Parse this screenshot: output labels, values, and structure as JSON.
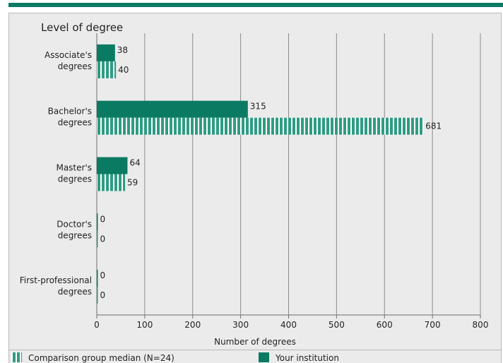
{
  "chart_data": {
    "type": "bar",
    "orientation": "horizontal",
    "title": "Level of degree",
    "xlabel": "Number of degrees",
    "xlim": [
      0,
      800
    ],
    "xticks": [
      0,
      100,
      200,
      300,
      400,
      500,
      600,
      700,
      800
    ],
    "grid": true,
    "categories": [
      [
        "Associate's",
        "degrees"
      ],
      [
        "Bachelor's",
        "degrees"
      ],
      [
        "Master's",
        "degrees"
      ],
      [
        "Doctor's",
        "degrees"
      ],
      [
        "First-professional",
        "degrees"
      ]
    ],
    "series": [
      {
        "name": "Your institution",
        "values": [
          38,
          315,
          64,
          0,
          0
        ],
        "color": "#0b7a62",
        "pattern": "solid"
      },
      {
        "name": "Comparison group median (N=24)",
        "values": [
          40,
          681,
          59,
          0,
          0
        ],
        "color": "#2e9c82",
        "pattern": "striped"
      }
    ],
    "legend": {
      "position": "bottom",
      "items": [
        {
          "label": "Comparison group median (N=24)",
          "series": 1
        },
        {
          "label": "Your institution",
          "series": 0
        }
      ]
    }
  }
}
